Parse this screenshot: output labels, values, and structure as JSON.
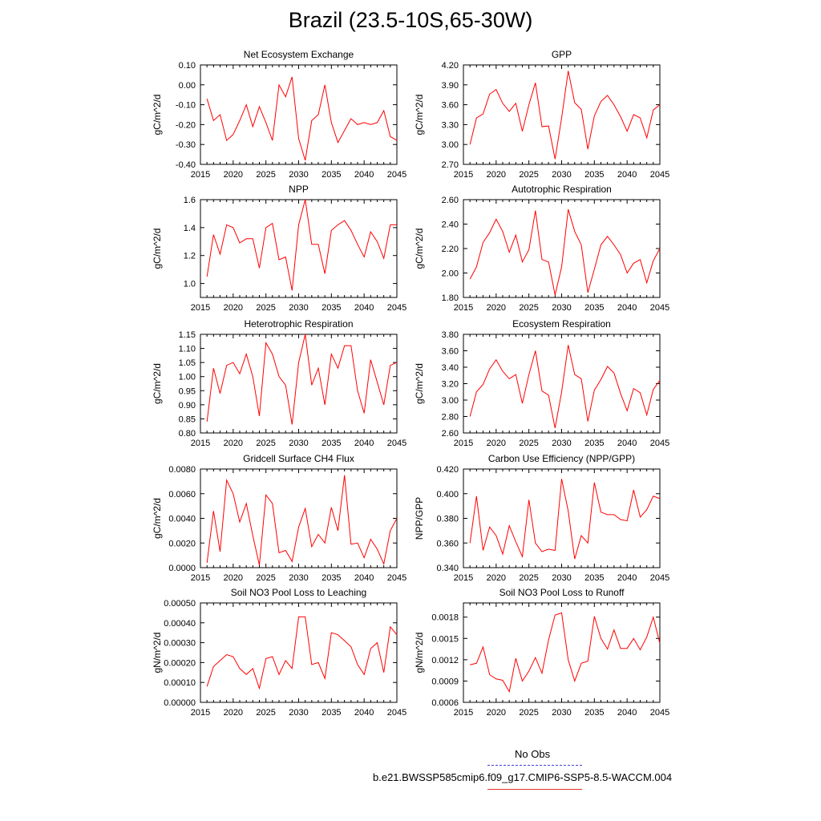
{
  "title": "Brazil (23.5-10S,65-30W)",
  "colors": {
    "series": "#ff0000",
    "obs": "#4040d0",
    "axis": "#000000"
  },
  "legend": {
    "obs_label": "No Obs",
    "model_label": "b.e21.BWSSP585cmip6.f09_g17.CMIP6-SSP5-8.5-WACCM.004"
  },
  "chart_data": [
    {
      "type": "line",
      "title": "Net Ecosystem Exchange",
      "ylabel": "gC/m^2/d",
      "xlim": [
        2015,
        2045
      ],
      "ylim": [
        -0.4,
        0.1
      ],
      "yticks": [
        -0.4,
        -0.3,
        -0.2,
        -0.1,
        0.0,
        0.1
      ],
      "yticklabels": [
        "-0.40",
        "-0.30",
        "-0.20",
        "-0.10",
        "0.00",
        "0.10"
      ],
      "xticks": [
        2015,
        2020,
        2025,
        2030,
        2035,
        2040,
        2045
      ],
      "series": [
        {
          "x": [
            2016,
            2017,
            2018,
            2019,
            2020,
            2021,
            2022,
            2023,
            2024,
            2025,
            2026,
            2027,
            2028,
            2029,
            2030,
            2031,
            2032,
            2033,
            2034,
            2035,
            2036,
            2037,
            2038,
            2039,
            2040,
            2041,
            2042,
            2043,
            2044,
            2045
          ],
          "values": [
            -0.07,
            -0.18,
            -0.15,
            -0.28,
            -0.25,
            -0.18,
            -0.1,
            -0.21,
            -0.11,
            -0.19,
            -0.28,
            0.0,
            -0.06,
            0.04,
            -0.27,
            -0.38,
            -0.18,
            -0.15,
            0.0,
            -0.19,
            -0.29,
            -0.23,
            -0.17,
            -0.2,
            -0.19,
            -0.2,
            -0.19,
            -0.13,
            -0.26,
            -0.28
          ]
        }
      ]
    },
    {
      "type": "line",
      "title": "GPP",
      "ylabel": "gC/m^2/d",
      "xlim": [
        2015,
        2045
      ],
      "ylim": [
        2.7,
        4.2
      ],
      "yticks": [
        2.7,
        3.0,
        3.3,
        3.6,
        3.9,
        4.2
      ],
      "yticklabels": [
        "2.70",
        "3.00",
        "3.30",
        "3.60",
        "3.90",
        "4.20"
      ],
      "xticks": [
        2015,
        2020,
        2025,
        2030,
        2035,
        2040,
        2045
      ],
      "series": [
        {
          "x": [
            2016,
            2017,
            2018,
            2019,
            2020,
            2021,
            2022,
            2023,
            2024,
            2025,
            2026,
            2027,
            2028,
            2029,
            2030,
            2031,
            2032,
            2033,
            2034,
            2035,
            2036,
            2037,
            2038,
            2039,
            2040,
            2041,
            2042,
            2043,
            2044,
            2045
          ],
          "values": [
            3.0,
            3.4,
            3.46,
            3.76,
            3.83,
            3.62,
            3.5,
            3.62,
            3.2,
            3.6,
            3.93,
            3.27,
            3.28,
            2.78,
            3.4,
            4.11,
            3.63,
            3.53,
            2.93,
            3.43,
            3.65,
            3.74,
            3.6,
            3.42,
            3.2,
            3.45,
            3.4,
            3.1,
            3.52,
            3.6
          ]
        }
      ]
    },
    {
      "type": "line",
      "title": "NPP",
      "ylabel": "gC/m^2/d",
      "xlim": [
        2015,
        2045
      ],
      "ylim": [
        0.9,
        1.6
      ],
      "yticks": [
        1.0,
        1.2,
        1.4,
        1.6
      ],
      "yticklabels": [
        "1.0",
        "1.2",
        "1.4",
        "1.6"
      ],
      "xticks": [
        2015,
        2020,
        2025,
        2030,
        2035,
        2040,
        2045
      ],
      "series": [
        {
          "x": [
            2016,
            2017,
            2018,
            2019,
            2020,
            2021,
            2022,
            2023,
            2024,
            2025,
            2026,
            2027,
            2028,
            2029,
            2030,
            2031,
            2032,
            2033,
            2034,
            2035,
            2036,
            2037,
            2038,
            2039,
            2040,
            2041,
            2042,
            2043,
            2044,
            2045
          ],
          "values": [
            1.05,
            1.35,
            1.21,
            1.42,
            1.4,
            1.29,
            1.32,
            1.32,
            1.11,
            1.4,
            1.43,
            1.17,
            1.19,
            0.95,
            1.42,
            1.6,
            1.28,
            1.28,
            1.07,
            1.38,
            1.42,
            1.45,
            1.38,
            1.28,
            1.19,
            1.37,
            1.3,
            1.18,
            1.42,
            1.42
          ]
        }
      ]
    },
    {
      "type": "line",
      "title": "Autotrophic Respiration",
      "ylabel": "gC/m^2/d",
      "xlim": [
        2015,
        2045
      ],
      "ylim": [
        1.8,
        2.6
      ],
      "yticks": [
        1.8,
        2.0,
        2.2,
        2.4,
        2.6
      ],
      "yticklabels": [
        "1.80",
        "2.00",
        "2.20",
        "2.40",
        "2.60"
      ],
      "xticks": [
        2015,
        2020,
        2025,
        2030,
        2035,
        2040,
        2045
      ],
      "series": [
        {
          "x": [
            2016,
            2017,
            2018,
            2019,
            2020,
            2021,
            2022,
            2023,
            2024,
            2025,
            2026,
            2027,
            2028,
            2029,
            2030,
            2031,
            2032,
            2033,
            2034,
            2035,
            2036,
            2037,
            2038,
            2039,
            2040,
            2041,
            2042,
            2043,
            2044,
            2045
          ],
          "values": [
            1.95,
            2.05,
            2.25,
            2.33,
            2.44,
            2.34,
            2.17,
            2.31,
            2.09,
            2.19,
            2.51,
            2.11,
            2.09,
            1.82,
            2.05,
            2.52,
            2.34,
            2.23,
            1.84,
            2.03,
            2.23,
            2.3,
            2.23,
            2.15,
            2.0,
            2.08,
            2.11,
            1.92,
            2.1,
            2.2
          ]
        }
      ]
    },
    {
      "type": "line",
      "title": "Heterotrophic Respiration",
      "ylabel": "gC/m^2/d",
      "xlim": [
        2015,
        2045
      ],
      "ylim": [
        0.8,
        1.15
      ],
      "yticks": [
        0.8,
        0.85,
        0.9,
        0.95,
        1.0,
        1.05,
        1.1,
        1.15
      ],
      "yticklabels": [
        "0.80",
        "0.85",
        "0.90",
        "0.95",
        "1.00",
        "1.05",
        "1.10",
        "1.15"
      ],
      "xticks": [
        2015,
        2020,
        2025,
        2030,
        2035,
        2040,
        2045
      ],
      "series": [
        {
          "x": [
            2016,
            2017,
            2018,
            2019,
            2020,
            2021,
            2022,
            2023,
            2024,
            2025,
            2026,
            2027,
            2028,
            2029,
            2030,
            2031,
            2032,
            2033,
            2034,
            2035,
            2036,
            2037,
            2038,
            2039,
            2040,
            2041,
            2042,
            2043,
            2044,
            2045
          ],
          "values": [
            0.84,
            1.03,
            0.94,
            1.04,
            1.05,
            1.01,
            1.08,
            1.0,
            0.86,
            1.12,
            1.08,
            1.0,
            0.97,
            0.83,
            1.05,
            1.15,
            0.97,
            1.03,
            0.9,
            1.08,
            1.03,
            1.11,
            1.11,
            0.95,
            0.87,
            1.06,
            0.98,
            0.9,
            1.04,
            1.05
          ]
        }
      ]
    },
    {
      "type": "line",
      "title": "Ecosystem Respiration",
      "ylabel": "gC/m^2/d",
      "xlim": [
        2015,
        2045
      ],
      "ylim": [
        2.6,
        3.8
      ],
      "yticks": [
        2.6,
        2.8,
        3.0,
        3.2,
        3.4,
        3.6,
        3.8
      ],
      "yticklabels": [
        "2.60",
        "2.80",
        "3.00",
        "3.20",
        "3.40",
        "3.60",
        "3.80"
      ],
      "xticks": [
        2015,
        2020,
        2025,
        2030,
        2035,
        2040,
        2045
      ],
      "series": [
        {
          "x": [
            2016,
            2017,
            2018,
            2019,
            2020,
            2021,
            2022,
            2023,
            2024,
            2025,
            2026,
            2027,
            2028,
            2029,
            2030,
            2031,
            2032,
            2033,
            2034,
            2035,
            2036,
            2037,
            2038,
            2039,
            2040,
            2041,
            2042,
            2043,
            2044,
            2045
          ],
          "values": [
            2.8,
            3.1,
            3.19,
            3.38,
            3.49,
            3.35,
            3.26,
            3.31,
            2.96,
            3.31,
            3.6,
            3.11,
            3.06,
            2.66,
            3.1,
            3.67,
            3.31,
            3.26,
            2.74,
            3.12,
            3.25,
            3.41,
            3.33,
            3.08,
            2.87,
            3.14,
            3.09,
            2.82,
            3.13,
            3.24
          ]
        }
      ]
    },
    {
      "type": "line",
      "title": "Gridcell Surface CH4 Flux",
      "ylabel": "gC/m^2/d",
      "xlim": [
        2015,
        2045
      ],
      "ylim": [
        0.0,
        0.008
      ],
      "yticks": [
        0.0,
        0.002,
        0.004,
        0.006,
        0.008
      ],
      "yticklabels": [
        "0.0000",
        "0.0020",
        "0.0040",
        "0.0060",
        "0.0080"
      ],
      "xticks": [
        2015,
        2020,
        2025,
        2030,
        2035,
        2040,
        2045
      ],
      "series": [
        {
          "x": [
            2016,
            2017,
            2018,
            2019,
            2020,
            2021,
            2022,
            2023,
            2024,
            2025,
            2026,
            2027,
            2028,
            2029,
            2030,
            2031,
            2032,
            2033,
            2034,
            2035,
            2036,
            2037,
            2038,
            2039,
            2040,
            2041,
            2042,
            2043,
            2044,
            2045
          ],
          "values": [
            0.0004,
            0.0046,
            0.0013,
            0.0071,
            0.006,
            0.0037,
            0.0052,
            0.0026,
            0.0002,
            0.0059,
            0.0052,
            0.0012,
            0.0014,
            0.0005,
            0.0033,
            0.0048,
            0.0017,
            0.0027,
            0.002,
            0.0049,
            0.003,
            0.0075,
            0.0019,
            0.002,
            0.0008,
            0.0023,
            0.0015,
            0.0003,
            0.003,
            0.004
          ]
        }
      ]
    },
    {
      "type": "line",
      "title": "Carbon Use Efficiency (NPP/GPP)",
      "ylabel": "NPP/GPP",
      "xlim": [
        2015,
        2045
      ],
      "ylim": [
        0.34,
        0.42
      ],
      "yticks": [
        0.34,
        0.36,
        0.38,
        0.4,
        0.42
      ],
      "yticklabels": [
        "0.340",
        "0.360",
        "0.380",
        "0.400",
        "0.420"
      ],
      "xticks": [
        2015,
        2020,
        2025,
        2030,
        2035,
        2040,
        2045
      ],
      "series": [
        {
          "x": [
            2016,
            2017,
            2018,
            2019,
            2020,
            2021,
            2022,
            2023,
            2024,
            2025,
            2026,
            2027,
            2028,
            2029,
            2030,
            2031,
            2032,
            2033,
            2034,
            2035,
            2036,
            2037,
            2038,
            2039,
            2040,
            2041,
            2042,
            2043,
            2044,
            2045
          ],
          "values": [
            0.36,
            0.398,
            0.354,
            0.373,
            0.366,
            0.351,
            0.374,
            0.361,
            0.349,
            0.395,
            0.36,
            0.353,
            0.355,
            0.354,
            0.412,
            0.386,
            0.347,
            0.366,
            0.36,
            0.409,
            0.385,
            0.383,
            0.383,
            0.379,
            0.378,
            0.403,
            0.381,
            0.387,
            0.398,
            0.396
          ]
        }
      ]
    },
    {
      "type": "line",
      "title": "Soil NO3 Pool Loss to Leaching",
      "ylabel": "gN/m^2/d",
      "xlim": [
        2015,
        2045
      ],
      "ylim": [
        0.0,
        0.0005
      ],
      "yticks": [
        0.0,
        0.0001,
        0.0002,
        0.0003,
        0.0004,
        0.0005
      ],
      "yticklabels": [
        "0.00000",
        "0.00010",
        "0.00020",
        "0.00030",
        "0.00040",
        "0.00050"
      ],
      "xticks": [
        2015,
        2020,
        2025,
        2030,
        2035,
        2040,
        2045
      ],
      "series": [
        {
          "x": [
            2016,
            2017,
            2018,
            2019,
            2020,
            2021,
            2022,
            2023,
            2024,
            2025,
            2026,
            2027,
            2028,
            2029,
            2030,
            2031,
            2032,
            2033,
            2034,
            2035,
            2036,
            2037,
            2038,
            2039,
            2040,
            2041,
            2042,
            2043,
            2044,
            2045
          ],
          "values": [
            8e-05,
            0.00018,
            0.00021,
            0.00024,
            0.00023,
            0.00017,
            0.00014,
            0.00017,
            7e-05,
            0.00022,
            0.00023,
            0.00014,
            0.00021,
            0.00017,
            0.00043,
            0.00043,
            0.00019,
            0.0002,
            0.00012,
            0.00035,
            0.00034,
            0.00031,
            0.00028,
            0.00019,
            0.00014,
            0.00027,
            0.0003,
            0.00015,
            0.00038,
            0.00034
          ]
        }
      ]
    },
    {
      "type": "line",
      "title": "Soil NO3 Pool Loss to Runoff",
      "ylabel": "gN/m^2/d",
      "xlim": [
        2015,
        2045
      ],
      "ylim": [
        0.0006,
        0.002
      ],
      "yticks": [
        0.0006,
        0.0009,
        0.0012,
        0.0015,
        0.0018
      ],
      "yticklabels": [
        "0.0006",
        "0.0009",
        "0.0012",
        "0.0015",
        "0.0018"
      ],
      "xticks": [
        2015,
        2020,
        2025,
        2030,
        2035,
        2040,
        2045
      ],
      "series": [
        {
          "x": [
            2016,
            2017,
            2018,
            2019,
            2020,
            2021,
            2022,
            2023,
            2024,
            2025,
            2026,
            2027,
            2028,
            2029,
            2030,
            2031,
            2032,
            2033,
            2034,
            2035,
            2036,
            2037,
            2038,
            2039,
            2040,
            2041,
            2042,
            2043,
            2044,
            2045
          ],
          "values": [
            0.00113,
            0.00115,
            0.00138,
            0.00099,
            0.00093,
            0.00091,
            0.00075,
            0.00122,
            0.0009,
            0.00104,
            0.00123,
            0.00101,
            0.00148,
            0.00183,
            0.00186,
            0.0012,
            0.0009,
            0.00115,
            0.00118,
            0.00181,
            0.0015,
            0.00135,
            0.00162,
            0.00136,
            0.00136,
            0.0015,
            0.00134,
            0.00152,
            0.0018,
            0.00143
          ]
        }
      ]
    }
  ]
}
